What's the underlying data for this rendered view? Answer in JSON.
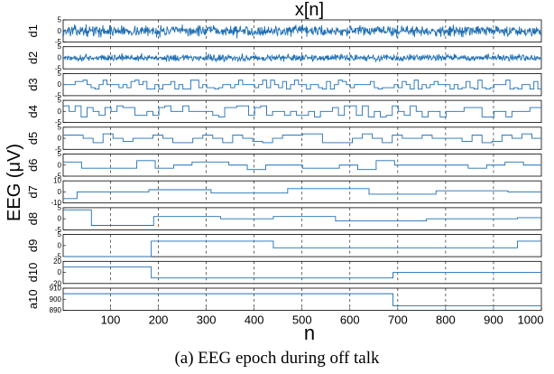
{
  "chart_data": {
    "type": "line",
    "title": "x[n]",
    "xlabel": "n",
    "ylabel": "EEG (μV)",
    "xlim": [
      1,
      1000
    ],
    "x_ticks": [
      100,
      200,
      300,
      400,
      500,
      600,
      700,
      800,
      900,
      1000
    ],
    "grid": "vertical-dashed",
    "line_color": "#1f6fb4",
    "panels": [
      {
        "name": "d1",
        "ylim": [
          -5,
          5
        ],
        "y_ticks": [
          5,
          0,
          -5
        ],
        "signal": "noise",
        "amplitude": 3.5
      },
      {
        "name": "d2",
        "ylim": [
          -5,
          5
        ],
        "y_ticks": [
          5,
          0,
          -5
        ],
        "signal": "noise",
        "amplitude": 2.2
      },
      {
        "name": "d3",
        "ylim": [
          -5,
          5
        ],
        "y_ticks": [
          5,
          0,
          -5
        ],
        "signal": "steps",
        "step_count": 120,
        "amplitude": 2.0
      },
      {
        "name": "d4",
        "ylim": [
          -5,
          5
        ],
        "y_ticks": [
          5,
          0,
          -5
        ],
        "signal": "steps",
        "step_count": 80,
        "amplitude": 2.5
      },
      {
        "name": "d5",
        "ylim": [
          -5,
          5
        ],
        "y_ticks": [
          5,
          0,
          -5
        ],
        "signal": "steps",
        "step_count": 48,
        "amplitude": 2.0
      },
      {
        "name": "d6",
        "ylim": [
          -5,
          5
        ],
        "y_ticks": [
          5,
          0,
          -5
        ],
        "signal": "steps",
        "step_count": 26,
        "amplitude": 2.0
      },
      {
        "name": "d7",
        "ylim": [
          -10,
          10
        ],
        "y_ticks": [
          10,
          0,
          -10
        ],
        "signal": "piecewise",
        "breaks": [
          0,
          30,
          180,
          310,
          470,
          640,
          780,
          930,
          1000
        ],
        "levels": [
          -6,
          0,
          2,
          -1,
          3,
          -2,
          1,
          0
        ]
      },
      {
        "name": "d8",
        "ylim": [
          -5,
          5
        ],
        "y_ticks": [
          5,
          0,
          -5
        ],
        "signal": "piecewise",
        "breaks": [
          0,
          60,
          190,
          330,
          440,
          570,
          760,
          950,
          1000
        ],
        "levels": [
          4,
          -3,
          1,
          0,
          1,
          -1,
          0,
          0.5
        ]
      },
      {
        "name": "d9",
        "ylim": [
          -5,
          5
        ],
        "y_ticks": [
          5,
          0,
          -5
        ],
        "signal": "piecewise",
        "breaks": [
          0,
          185,
          440,
          950,
          1000
        ],
        "levels": [
          -5,
          2,
          -1,
          2
        ]
      },
      {
        "name": "d10",
        "ylim": [
          -20,
          20
        ],
        "y_ticks": [
          20,
          0,
          -20
        ],
        "signal": "piecewise",
        "breaks": [
          0,
          185,
          690,
          1000
        ],
        "levels": [
          10,
          -10,
          0
        ]
      },
      {
        "name": "a10",
        "ylim": [
          890,
          910
        ],
        "y_ticks": [
          910,
          900,
          890
        ],
        "signal": "piecewise",
        "breaks": [
          0,
          690,
          1000
        ],
        "levels": [
          905,
          894
        ]
      }
    ]
  },
  "caption": "(a) EEG epoch during off talk"
}
